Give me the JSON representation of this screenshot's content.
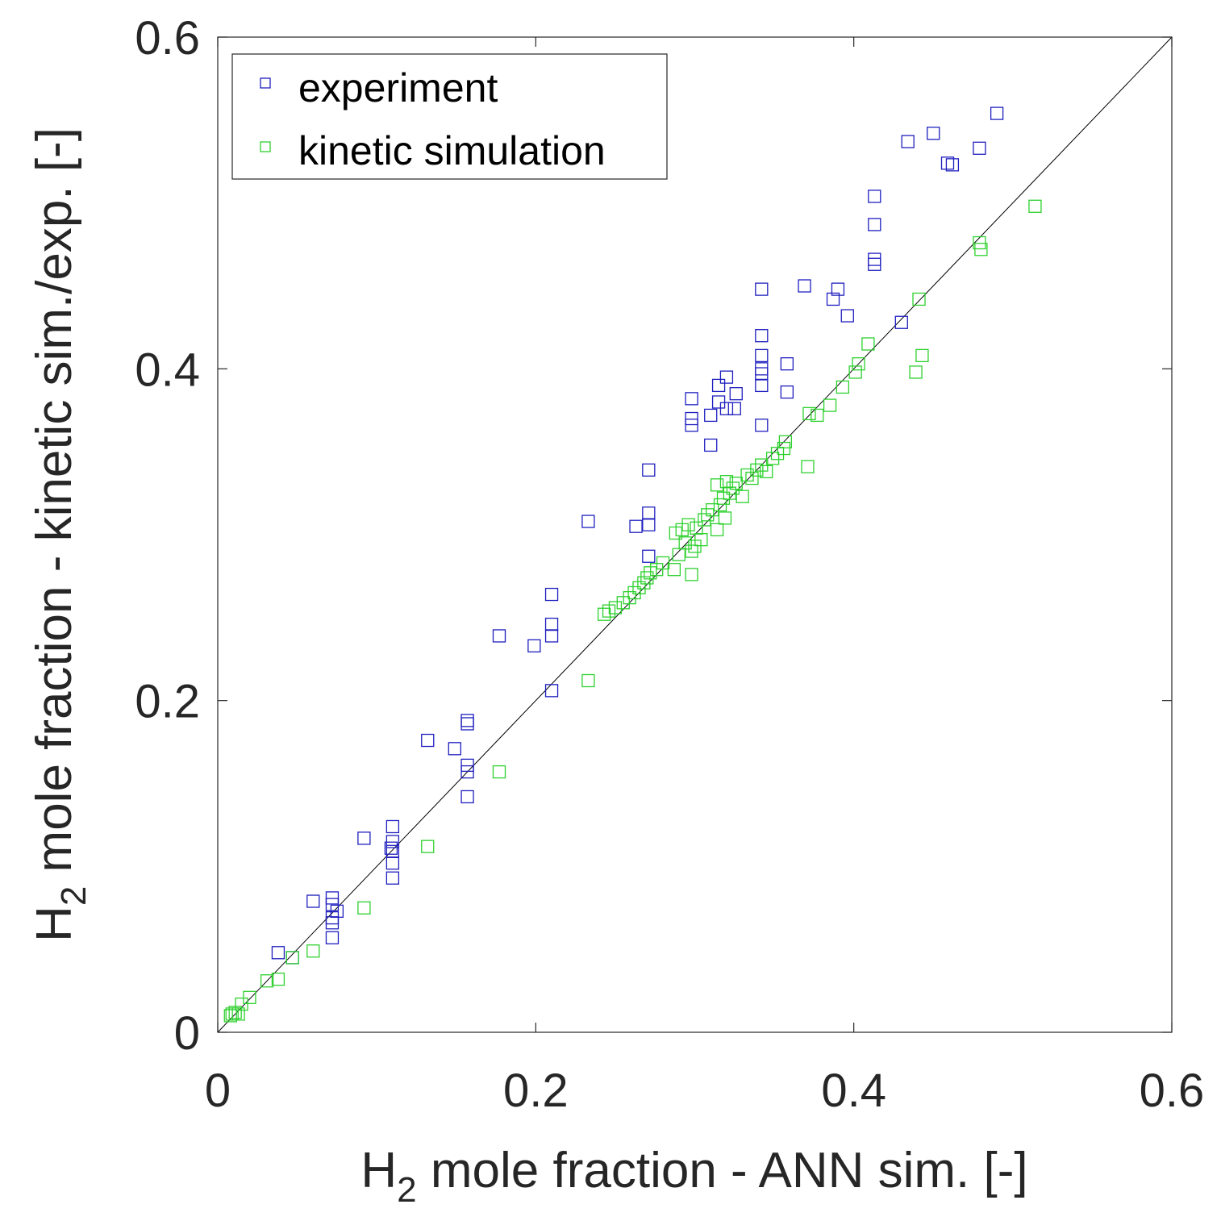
{
  "chart_data": {
    "type": "scatter",
    "title": "",
    "xlabel": {
      "prefix": "H",
      "subscript": "2",
      "rest": " mole fraction - ANN sim. [-]"
    },
    "ylabel": {
      "prefix": "H",
      "subscript": "2",
      "rest": " mole fraction - kinetic sim./exp. [-]"
    },
    "xlim": [
      0,
      0.6
    ],
    "ylim": [
      0,
      0.6
    ],
    "xticks": [
      0,
      0.2,
      0.4,
      0.6
    ],
    "xtick_labels": [
      "0",
      "0.2",
      "0.4",
      "0.6"
    ],
    "yticks": [
      0,
      0.2,
      0.4,
      0.6
    ],
    "ytick_labels": [
      "0",
      "0.2",
      "0.4",
      "0.6"
    ],
    "grid": false,
    "legend_position": "top-left",
    "reference_line": {
      "name": "y = x",
      "from": [
        0,
        0
      ],
      "to": [
        0.6,
        0.6
      ],
      "color": "#000000"
    },
    "series": [
      {
        "name": "experiment",
        "color": "#1f1fbf",
        "marker": "square",
        "points": [
          [
            0.038,
            0.048
          ],
          [
            0.047,
            0.045
          ],
          [
            0.06,
            0.079
          ],
          [
            0.072,
            0.077
          ],
          [
            0.072,
            0.081
          ],
          [
            0.072,
            0.066
          ],
          [
            0.072,
            0.069
          ],
          [
            0.072,
            0.057
          ],
          [
            0.075,
            0.073
          ],
          [
            0.092,
            0.117
          ],
          [
            0.109,
            0.111
          ],
          [
            0.11,
            0.124
          ],
          [
            0.11,
            0.115
          ],
          [
            0.11,
            0.109
          ],
          [
            0.11,
            0.102
          ],
          [
            0.11,
            0.093
          ],
          [
            0.132,
            0.176
          ],
          [
            0.149,
            0.171
          ],
          [
            0.157,
            0.188
          ],
          [
            0.157,
            0.186
          ],
          [
            0.157,
            0.161
          ],
          [
            0.157,
            0.157
          ],
          [
            0.157,
            0.142
          ],
          [
            0.177,
            0.239
          ],
          [
            0.199,
            0.233
          ],
          [
            0.21,
            0.264
          ],
          [
            0.21,
            0.246
          ],
          [
            0.21,
            0.239
          ],
          [
            0.21,
            0.206
          ],
          [
            0.233,
            0.308
          ],
          [
            0.263,
            0.305
          ],
          [
            0.271,
            0.339
          ],
          [
            0.271,
            0.313
          ],
          [
            0.271,
            0.306
          ],
          [
            0.271,
            0.287
          ],
          [
            0.298,
            0.382
          ],
          [
            0.298,
            0.37
          ],
          [
            0.298,
            0.366
          ],
          [
            0.31,
            0.354
          ],
          [
            0.31,
            0.372
          ],
          [
            0.315,
            0.38
          ],
          [
            0.315,
            0.39
          ],
          [
            0.32,
            0.395
          ],
          [
            0.32,
            0.376
          ],
          [
            0.325,
            0.376
          ],
          [
            0.326,
            0.385
          ],
          [
            0.342,
            0.448
          ],
          [
            0.342,
            0.42
          ],
          [
            0.342,
            0.408
          ],
          [
            0.342,
            0.4
          ],
          [
            0.342,
            0.397
          ],
          [
            0.342,
            0.39
          ],
          [
            0.342,
            0.366
          ],
          [
            0.358,
            0.403
          ],
          [
            0.358,
            0.386
          ],
          [
            0.369,
            0.45
          ],
          [
            0.387,
            0.442
          ],
          [
            0.39,
            0.448
          ],
          [
            0.396,
            0.432
          ],
          [
            0.413,
            0.504
          ],
          [
            0.413,
            0.487
          ],
          [
            0.413,
            0.466
          ],
          [
            0.413,
            0.463
          ],
          [
            0.43,
            0.428
          ],
          [
            0.434,
            0.537
          ],
          [
            0.45,
            0.542
          ],
          [
            0.459,
            0.524
          ],
          [
            0.462,
            0.523
          ],
          [
            0.479,
            0.533
          ],
          [
            0.49,
            0.554
          ]
        ]
      },
      {
        "name": "kinetic simulation",
        "color": "#2ed12e",
        "marker": "square",
        "points": [
          [
            0.008,
            0.01
          ],
          [
            0.009,
            0.011
          ],
          [
            0.011,
            0.012
          ],
          [
            0.013,
            0.011
          ],
          [
            0.015,
            0.017
          ],
          [
            0.02,
            0.021
          ],
          [
            0.031,
            0.031
          ],
          [
            0.038,
            0.032
          ],
          [
            0.047,
            0.045
          ],
          [
            0.06,
            0.049
          ],
          [
            0.092,
            0.075
          ],
          [
            0.132,
            0.112
          ],
          [
            0.177,
            0.157
          ],
          [
            0.233,
            0.212
          ],
          [
            0.243,
            0.252
          ],
          [
            0.246,
            0.254
          ],
          [
            0.25,
            0.256
          ],
          [
            0.255,
            0.259
          ],
          [
            0.259,
            0.262
          ],
          [
            0.262,
            0.265
          ],
          [
            0.265,
            0.268
          ],
          [
            0.268,
            0.271
          ],
          [
            0.27,
            0.274
          ],
          [
            0.272,
            0.277
          ],
          [
            0.276,
            0.279
          ],
          [
            0.28,
            0.283
          ],
          [
            0.287,
            0.279
          ],
          [
            0.288,
            0.301
          ],
          [
            0.29,
            0.288
          ],
          [
            0.292,
            0.303
          ],
          [
            0.294,
            0.295
          ],
          [
            0.296,
            0.306
          ],
          [
            0.298,
            0.29
          ],
          [
            0.298,
            0.276
          ],
          [
            0.3,
            0.293
          ],
          [
            0.301,
            0.304
          ],
          [
            0.304,
            0.297
          ],
          [
            0.306,
            0.309
          ],
          [
            0.308,
            0.312
          ],
          [
            0.311,
            0.315
          ],
          [
            0.314,
            0.303
          ],
          [
            0.316,
            0.318
          ],
          [
            0.318,
            0.322
          ],
          [
            0.319,
            0.31
          ],
          [
            0.322,
            0.325
          ],
          [
            0.324,
            0.328
          ],
          [
            0.326,
            0.331
          ],
          [
            0.32,
            0.332
          ],
          [
            0.314,
            0.33
          ],
          [
            0.33,
            0.323
          ],
          [
            0.333,
            0.336
          ],
          [
            0.336,
            0.334
          ],
          [
            0.339,
            0.339
          ],
          [
            0.342,
            0.342
          ],
          [
            0.345,
            0.338
          ],
          [
            0.349,
            0.346
          ],
          [
            0.352,
            0.349
          ],
          [
            0.356,
            0.352
          ],
          [
            0.357,
            0.356
          ],
          [
            0.371,
            0.341
          ],
          [
            0.372,
            0.373
          ],
          [
            0.377,
            0.372
          ],
          [
            0.385,
            0.378
          ],
          [
            0.393,
            0.389
          ],
          [
            0.401,
            0.398
          ],
          [
            0.403,
            0.403
          ],
          [
            0.409,
            0.415
          ],
          [
            0.439,
            0.398
          ],
          [
            0.441,
            0.442
          ],
          [
            0.443,
            0.408
          ],
          [
            0.479,
            0.476
          ],
          [
            0.48,
            0.472
          ],
          [
            0.514,
            0.498
          ]
        ]
      }
    ]
  }
}
